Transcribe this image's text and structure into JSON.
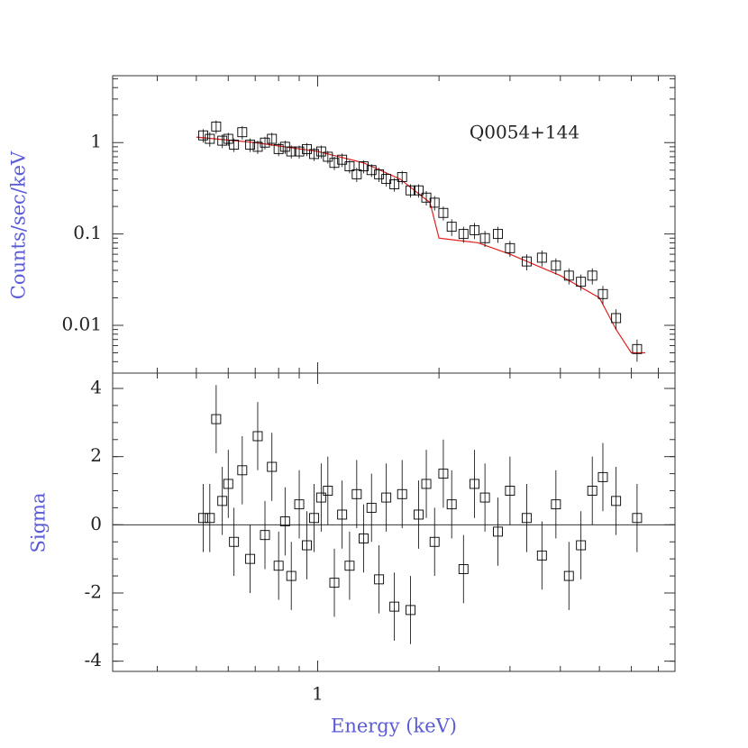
{
  "chart_data": [
    {
      "type": "scatter",
      "annotation": "Q0054+144",
      "ylabel": "Counts/sec/keV",
      "log_x": true,
      "log_y": true,
      "xlim": [
        0.31,
        7.7
      ],
      "ylim": [
        0.003,
        5.4
      ],
      "yticks": [
        0.01,
        0.1,
        1
      ],
      "series": [
        {
          "color": "#000000",
          "x": [
            0.52,
            0.54,
            0.56,
            0.58,
            0.6,
            0.62,
            0.65,
            0.68,
            0.71,
            0.74,
            0.77,
            0.8,
            0.83,
            0.86,
            0.9,
            0.94,
            0.98,
            1.02,
            1.06,
            1.1,
            1.15,
            1.2,
            1.25,
            1.3,
            1.36,
            1.42,
            1.48,
            1.55,
            1.62,
            1.7,
            1.78,
            1.86,
            1.95,
            2.05,
            2.15,
            2.3,
            2.45,
            2.6,
            2.8,
            3.0,
            3.3,
            3.6,
            3.9,
            4.2,
            4.5,
            4.8,
            5.1,
            5.5,
            6.2
          ],
          "values": [
            1.2,
            1.1,
            1.5,
            1.05,
            1.1,
            0.95,
            1.3,
            0.95,
            0.9,
            1.0,
            1.1,
            0.85,
            0.9,
            0.8,
            0.8,
            0.85,
            0.75,
            0.8,
            0.7,
            0.6,
            0.65,
            0.55,
            0.45,
            0.55,
            0.5,
            0.45,
            0.4,
            0.35,
            0.42,
            0.3,
            0.3,
            0.25,
            0.22,
            0.17,
            0.12,
            0.1,
            0.11,
            0.09,
            0.1,
            0.07,
            0.05,
            0.055,
            0.045,
            0.035,
            0.03,
            0.035,
            0.022,
            0.012,
            0.0055
          ],
          "errors": [
            0.2,
            0.2,
            0.25,
            0.18,
            0.18,
            0.16,
            0.22,
            0.16,
            0.15,
            0.16,
            0.18,
            0.14,
            0.15,
            0.13,
            0.13,
            0.14,
            0.12,
            0.13,
            0.11,
            0.1,
            0.11,
            0.09,
            0.08,
            0.09,
            0.08,
            0.08,
            0.07,
            0.06,
            0.07,
            0.05,
            0.05,
            0.045,
            0.04,
            0.03,
            0.025,
            0.02,
            0.022,
            0.018,
            0.02,
            0.014,
            0.01,
            0.011,
            0.009,
            0.007,
            0.006,
            0.007,
            0.005,
            0.003,
            0.0015
          ]
        }
      ],
      "model": {
        "color": "#e02020",
        "x": [
          0.5,
          0.7,
          1.0,
          1.3,
          1.6,
          1.9,
          2.0,
          2.5,
          3.0,
          4.0,
          5.0,
          5.5,
          6.0,
          6.5
        ],
        "values": [
          1.15,
          1.0,
          0.8,
          0.6,
          0.4,
          0.22,
          0.09,
          0.08,
          0.06,
          0.035,
          0.02,
          0.009,
          0.005,
          0.005
        ]
      }
    },
    {
      "type": "scatter",
      "ylabel": "Sigma",
      "xlabel": "Energy (keV)",
      "log_x": true,
      "xlim": [
        0.31,
        7.7
      ],
      "ylim": [
        -4.3,
        4.45
      ],
      "xticks": [
        1
      ],
      "yticks": [
        -4,
        -2,
        0,
        2,
        4
      ],
      "zero_line": true,
      "series": [
        {
          "color": "#000000",
          "x": [
            0.52,
            0.54,
            0.56,
            0.58,
            0.6,
            0.62,
            0.65,
            0.68,
            0.71,
            0.74,
            0.77,
            0.8,
            0.83,
            0.86,
            0.9,
            0.94,
            0.98,
            1.02,
            1.06,
            1.1,
            1.15,
            1.2,
            1.25,
            1.3,
            1.36,
            1.42,
            1.48,
            1.55,
            1.62,
            1.7,
            1.78,
            1.86,
            1.95,
            2.05,
            2.15,
            2.3,
            2.45,
            2.6,
            2.8,
            3.0,
            3.3,
            3.6,
            3.9,
            4.2,
            4.5,
            4.8,
            5.1,
            5.5,
            6.2
          ],
          "values": [
            0.2,
            0.2,
            3.1,
            0.7,
            1.2,
            -0.5,
            1.6,
            -1.0,
            2.6,
            -0.3,
            1.7,
            -1.2,
            0.1,
            -1.5,
            0.6,
            -0.6,
            0.2,
            0.8,
            1.0,
            -1.7,
            0.3,
            -1.2,
            0.9,
            -0.4,
            0.5,
            -1.6,
            0.8,
            -2.4,
            0.9,
            -2.5,
            0.3,
            1.2,
            -0.5,
            1.5,
            0.6,
            -1.3,
            1.2,
            0.8,
            -0.2,
            1.0,
            0.2,
            -0.9,
            0.6,
            -1.5,
            -0.6,
            1.0,
            1.4,
            0.7,
            0.2
          ],
          "errors": [
            1,
            1,
            1,
            1,
            1,
            1,
            1,
            1,
            1,
            1,
            1,
            1,
            1,
            1,
            1,
            1,
            1,
            1,
            1,
            1,
            1,
            1,
            1,
            1,
            1,
            1,
            1,
            1,
            1,
            1,
            1,
            1,
            1,
            1,
            1,
            1,
            1,
            1,
            1,
            1,
            1,
            1,
            1,
            1,
            1,
            1,
            1,
            1,
            1
          ]
        }
      ]
    }
  ]
}
